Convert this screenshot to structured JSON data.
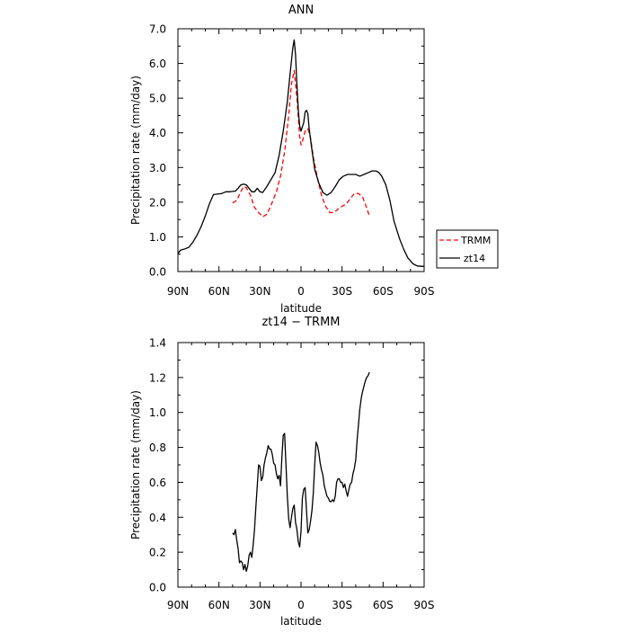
{
  "chart_data": [
    {
      "type": "line",
      "title": "ANN",
      "xlabel": "latitude",
      "ylabel": "Precipitation rate (mm/day)",
      "xlim": [
        90,
        -90
      ],
      "ylim": [
        0,
        7
      ],
      "xticks": [
        90,
        60,
        30,
        0,
        -30,
        -60,
        -90
      ],
      "xtick_labels": [
        "90N",
        "60N",
        "30N",
        "0",
        "30S",
        "60S",
        "90S"
      ],
      "yticks": [
        0,
        1,
        2,
        3,
        4,
        5,
        6,
        7
      ],
      "ytick_labels": [
        "0.0",
        "1.0",
        "2.0",
        "3.0",
        "4.0",
        "5.0",
        "6.0",
        "7.0"
      ],
      "legend_position": "right",
      "series": [
        {
          "name": "TRMM",
          "color": "#ff0000",
          "dash": "dashed",
          "x": [
            50,
            47,
            44,
            42,
            40,
            37,
            34,
            31,
            28,
            25,
            22,
            18,
            15,
            12,
            9,
            7,
            5,
            3,
            1,
            0,
            -1,
            -3,
            -5,
            -7,
            -9,
            -12,
            -15,
            -18,
            -21,
            -24,
            -27,
            -30,
            -33,
            -36,
            -39,
            -42,
            -45,
            -47,
            -50
          ],
          "y": [
            1.98,
            2.05,
            2.3,
            2.45,
            2.42,
            2.2,
            1.85,
            1.7,
            1.58,
            1.65,
            1.9,
            2.3,
            2.75,
            3.45,
            4.5,
            5.4,
            5.8,
            5.0,
            3.9,
            3.65,
            3.75,
            4.05,
            4.12,
            3.85,
            3.3,
            2.7,
            2.2,
            1.88,
            1.7,
            1.7,
            1.8,
            1.88,
            1.95,
            2.1,
            2.25,
            2.25,
            2.15,
            1.95,
            1.6
          ]
        },
        {
          "name": "zt14",
          "color": "#000000",
          "dash": "solid",
          "x": [
            90,
            88,
            85,
            82,
            79,
            76,
            73,
            70,
            67,
            64,
            62,
            58,
            55,
            52,
            48,
            46,
            44,
            42,
            40,
            38,
            36,
            34,
            32,
            30,
            28,
            25,
            22,
            19,
            16,
            13,
            10,
            8,
            6,
            5,
            4,
            3,
            2,
            1,
            0,
            -2,
            -3,
            -4,
            -5,
            -6,
            -8,
            -10,
            -13,
            -16,
            -19,
            -22,
            -25,
            -28,
            -31,
            -34,
            -37,
            -40,
            -43,
            -46,
            -49,
            -52,
            -55,
            -57,
            -59,
            -62,
            -65,
            -68,
            -72,
            -75,
            -78,
            -82,
            -85,
            -88,
            -90
          ],
          "y": [
            0.52,
            0.62,
            0.65,
            0.7,
            0.85,
            1.05,
            1.3,
            1.6,
            1.95,
            2.22,
            2.23,
            2.25,
            2.3,
            2.3,
            2.32,
            2.4,
            2.5,
            2.52,
            2.5,
            2.4,
            2.3,
            2.3,
            2.4,
            2.3,
            2.28,
            2.45,
            2.65,
            2.85,
            3.35,
            4.05,
            4.9,
            5.7,
            6.45,
            6.68,
            6.25,
            5.4,
            4.65,
            4.2,
            4.05,
            4.3,
            4.6,
            4.65,
            4.55,
            4.1,
            3.5,
            2.95,
            2.55,
            2.28,
            2.2,
            2.28,
            2.45,
            2.65,
            2.75,
            2.8,
            2.8,
            2.8,
            2.75,
            2.8,
            2.85,
            2.9,
            2.9,
            2.85,
            2.75,
            2.5,
            2.05,
            1.45,
            0.95,
            0.65,
            0.4,
            0.22,
            0.16,
            0.15,
            0.15
          ]
        }
      ]
    },
    {
      "type": "line",
      "title": "zt14 − TRMM",
      "xlabel": "latitude",
      "ylabel": "Precipitation rate (mm/day)",
      "xlim": [
        90,
        -90
      ],
      "ylim": [
        0,
        1.4
      ],
      "xticks": [
        90,
        60,
        30,
        0,
        -30,
        -60,
        -90
      ],
      "xtick_labels": [
        "90N",
        "60N",
        "30N",
        "0",
        "30S",
        "60S",
        "90S"
      ],
      "yticks": [
        0,
        0.2,
        0.4,
        0.6,
        0.8,
        1.0,
        1.2,
        1.4
      ],
      "ytick_labels": [
        "0.0",
        "0.2",
        "0.4",
        "0.6",
        "0.8",
        "1.0",
        "1.2",
        "1.4"
      ],
      "series": [
        {
          "color": "#000000",
          "dash": "solid",
          "x": [
            50,
            49,
            48,
            47,
            46,
            45,
            44,
            43,
            42,
            41,
            40,
            39,
            38,
            37,
            36,
            35,
            34,
            33,
            32,
            31,
            30,
            29,
            28,
            27,
            26,
            25,
            24,
            23,
            22,
            21,
            20,
            19,
            18,
            17,
            16,
            15,
            14,
            13,
            12,
            11,
            10,
            9,
            8,
            7,
            6,
            5,
            4,
            3,
            2,
            1,
            0,
            -1,
            -2,
            -3,
            -4,
            -5,
            -6,
            -7,
            -8,
            -9,
            -10,
            -11,
            -12,
            -13,
            -14,
            -15,
            -16,
            -17,
            -18,
            -19,
            -20,
            -21,
            -22,
            -23,
            -24,
            -25,
            -26,
            -27,
            -28,
            -29,
            -30,
            -31,
            -32,
            -33,
            -34,
            -35,
            -36,
            -37,
            -38,
            -39,
            -40,
            -41,
            -42,
            -43,
            -44,
            -45,
            -46,
            -47,
            -48,
            -49,
            -50
          ],
          "y": [
            0.31,
            0.3,
            0.33,
            0.27,
            0.22,
            0.14,
            0.15,
            0.14,
            0.1,
            0.13,
            0.09,
            0.12,
            0.18,
            0.2,
            0.17,
            0.24,
            0.33,
            0.46,
            0.58,
            0.7,
            0.69,
            0.61,
            0.63,
            0.7,
            0.74,
            0.77,
            0.81,
            0.79,
            0.79,
            0.76,
            0.71,
            0.7,
            0.65,
            0.62,
            0.64,
            0.58,
            0.74,
            0.87,
            0.88,
            0.7,
            0.52,
            0.39,
            0.34,
            0.4,
            0.45,
            0.47,
            0.37,
            0.33,
            0.26,
            0.23,
            0.32,
            0.51,
            0.56,
            0.57,
            0.44,
            0.31,
            0.33,
            0.38,
            0.44,
            0.54,
            0.7,
            0.83,
            0.81,
            0.77,
            0.71,
            0.67,
            0.64,
            0.58,
            0.55,
            0.52,
            0.51,
            0.49,
            0.49,
            0.5,
            0.49,
            0.52,
            0.6,
            0.62,
            0.62,
            0.6,
            0.6,
            0.57,
            0.59,
            0.55,
            0.52,
            0.56,
            0.59,
            0.6,
            0.65,
            0.68,
            0.73,
            0.84,
            0.93,
            1.02,
            1.08,
            1.12,
            1.15,
            1.18,
            1.2,
            1.21,
            1.23
          ]
        }
      ]
    }
  ]
}
